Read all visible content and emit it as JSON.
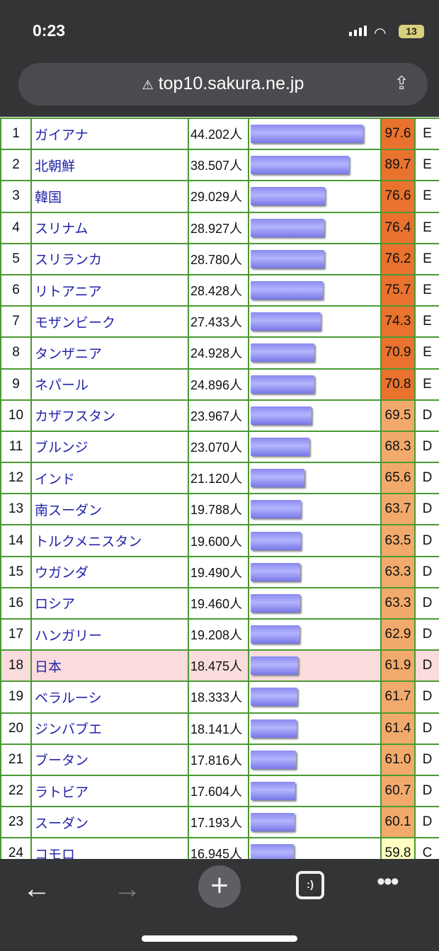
{
  "status": {
    "time": "0:23",
    "battery": "13"
  },
  "browser": {
    "url": "top10.sakura.ne.jp",
    "warning_icon": "⚠"
  },
  "colors": {
    "E": "#e8722e",
    "D": "#f1aa6c",
    "C": "#ffffc0",
    "highlight": "#fadcdc"
  },
  "table": {
    "max_value": 44.202,
    "unit": "人",
    "rows": [
      {
        "rank": "1",
        "name": "ガイアナ",
        "value": "44.202",
        "score": "97.6",
        "grade": "E"
      },
      {
        "rank": "2",
        "name": "北朝鮮",
        "value": "38.507",
        "score": "89.7",
        "grade": "E"
      },
      {
        "rank": "3",
        "name": "韓国",
        "value": "29.029",
        "score": "76.6",
        "grade": "E"
      },
      {
        "rank": "4",
        "name": "スリナム",
        "value": "28.927",
        "score": "76.4",
        "grade": "E"
      },
      {
        "rank": "5",
        "name": "スリランカ",
        "value": "28.780",
        "score": "76.2",
        "grade": "E"
      },
      {
        "rank": "6",
        "name": "リトアニア",
        "value": "28.428",
        "score": "75.7",
        "grade": "E"
      },
      {
        "rank": "7",
        "name": "モザンビーク",
        "value": "27.433",
        "score": "74.3",
        "grade": "E"
      },
      {
        "rank": "8",
        "name": "タンザニア",
        "value": "24.928",
        "score": "70.9",
        "grade": "E"
      },
      {
        "rank": "9",
        "name": "ネパール",
        "value": "24.896",
        "score": "70.8",
        "grade": "E"
      },
      {
        "rank": "10",
        "name": "カザフスタン",
        "value": "23.967",
        "score": "69.5",
        "grade": "D"
      },
      {
        "rank": "11",
        "name": "ブルンジ",
        "value": "23.070",
        "score": "68.3",
        "grade": "D"
      },
      {
        "rank": "12",
        "name": "インド",
        "value": "21.120",
        "score": "65.6",
        "grade": "D"
      },
      {
        "rank": "13",
        "name": "南スーダン",
        "value": "19.788",
        "score": "63.7",
        "grade": "D"
      },
      {
        "rank": "14",
        "name": "トルクメニスタン",
        "value": "19.600",
        "score": "63.5",
        "grade": "D"
      },
      {
        "rank": "15",
        "name": "ウガンダ",
        "value": "19.490",
        "score": "63.3",
        "grade": "D"
      },
      {
        "rank": "16",
        "name": "ロシア",
        "value": "19.460",
        "score": "63.3",
        "grade": "D"
      },
      {
        "rank": "17",
        "name": "ハンガリー",
        "value": "19.208",
        "score": "62.9",
        "grade": "D"
      },
      {
        "rank": "18",
        "name": "日本",
        "value": "18.475",
        "score": "61.9",
        "grade": "D",
        "highlight": true
      },
      {
        "rank": "19",
        "name": "ベラルーシ",
        "value": "18.333",
        "score": "61.7",
        "grade": "D"
      },
      {
        "rank": "20",
        "name": "ジンバブエ",
        "value": "18.141",
        "score": "61.4",
        "grade": "D"
      },
      {
        "rank": "21",
        "name": "ブータン",
        "value": "17.816",
        "score": "61.0",
        "grade": "D"
      },
      {
        "rank": "22",
        "name": "ラトビア",
        "value": "17.604",
        "score": "60.7",
        "grade": "D"
      },
      {
        "rank": "23",
        "name": "スーダン",
        "value": "17.193",
        "score": "60.1",
        "grade": "D"
      },
      {
        "rank": "24",
        "name": "コモロ",
        "value": "16.945",
        "score": "59.8",
        "grade": "C"
      }
    ]
  },
  "toolbar": {
    "tabs_label": ":)"
  }
}
